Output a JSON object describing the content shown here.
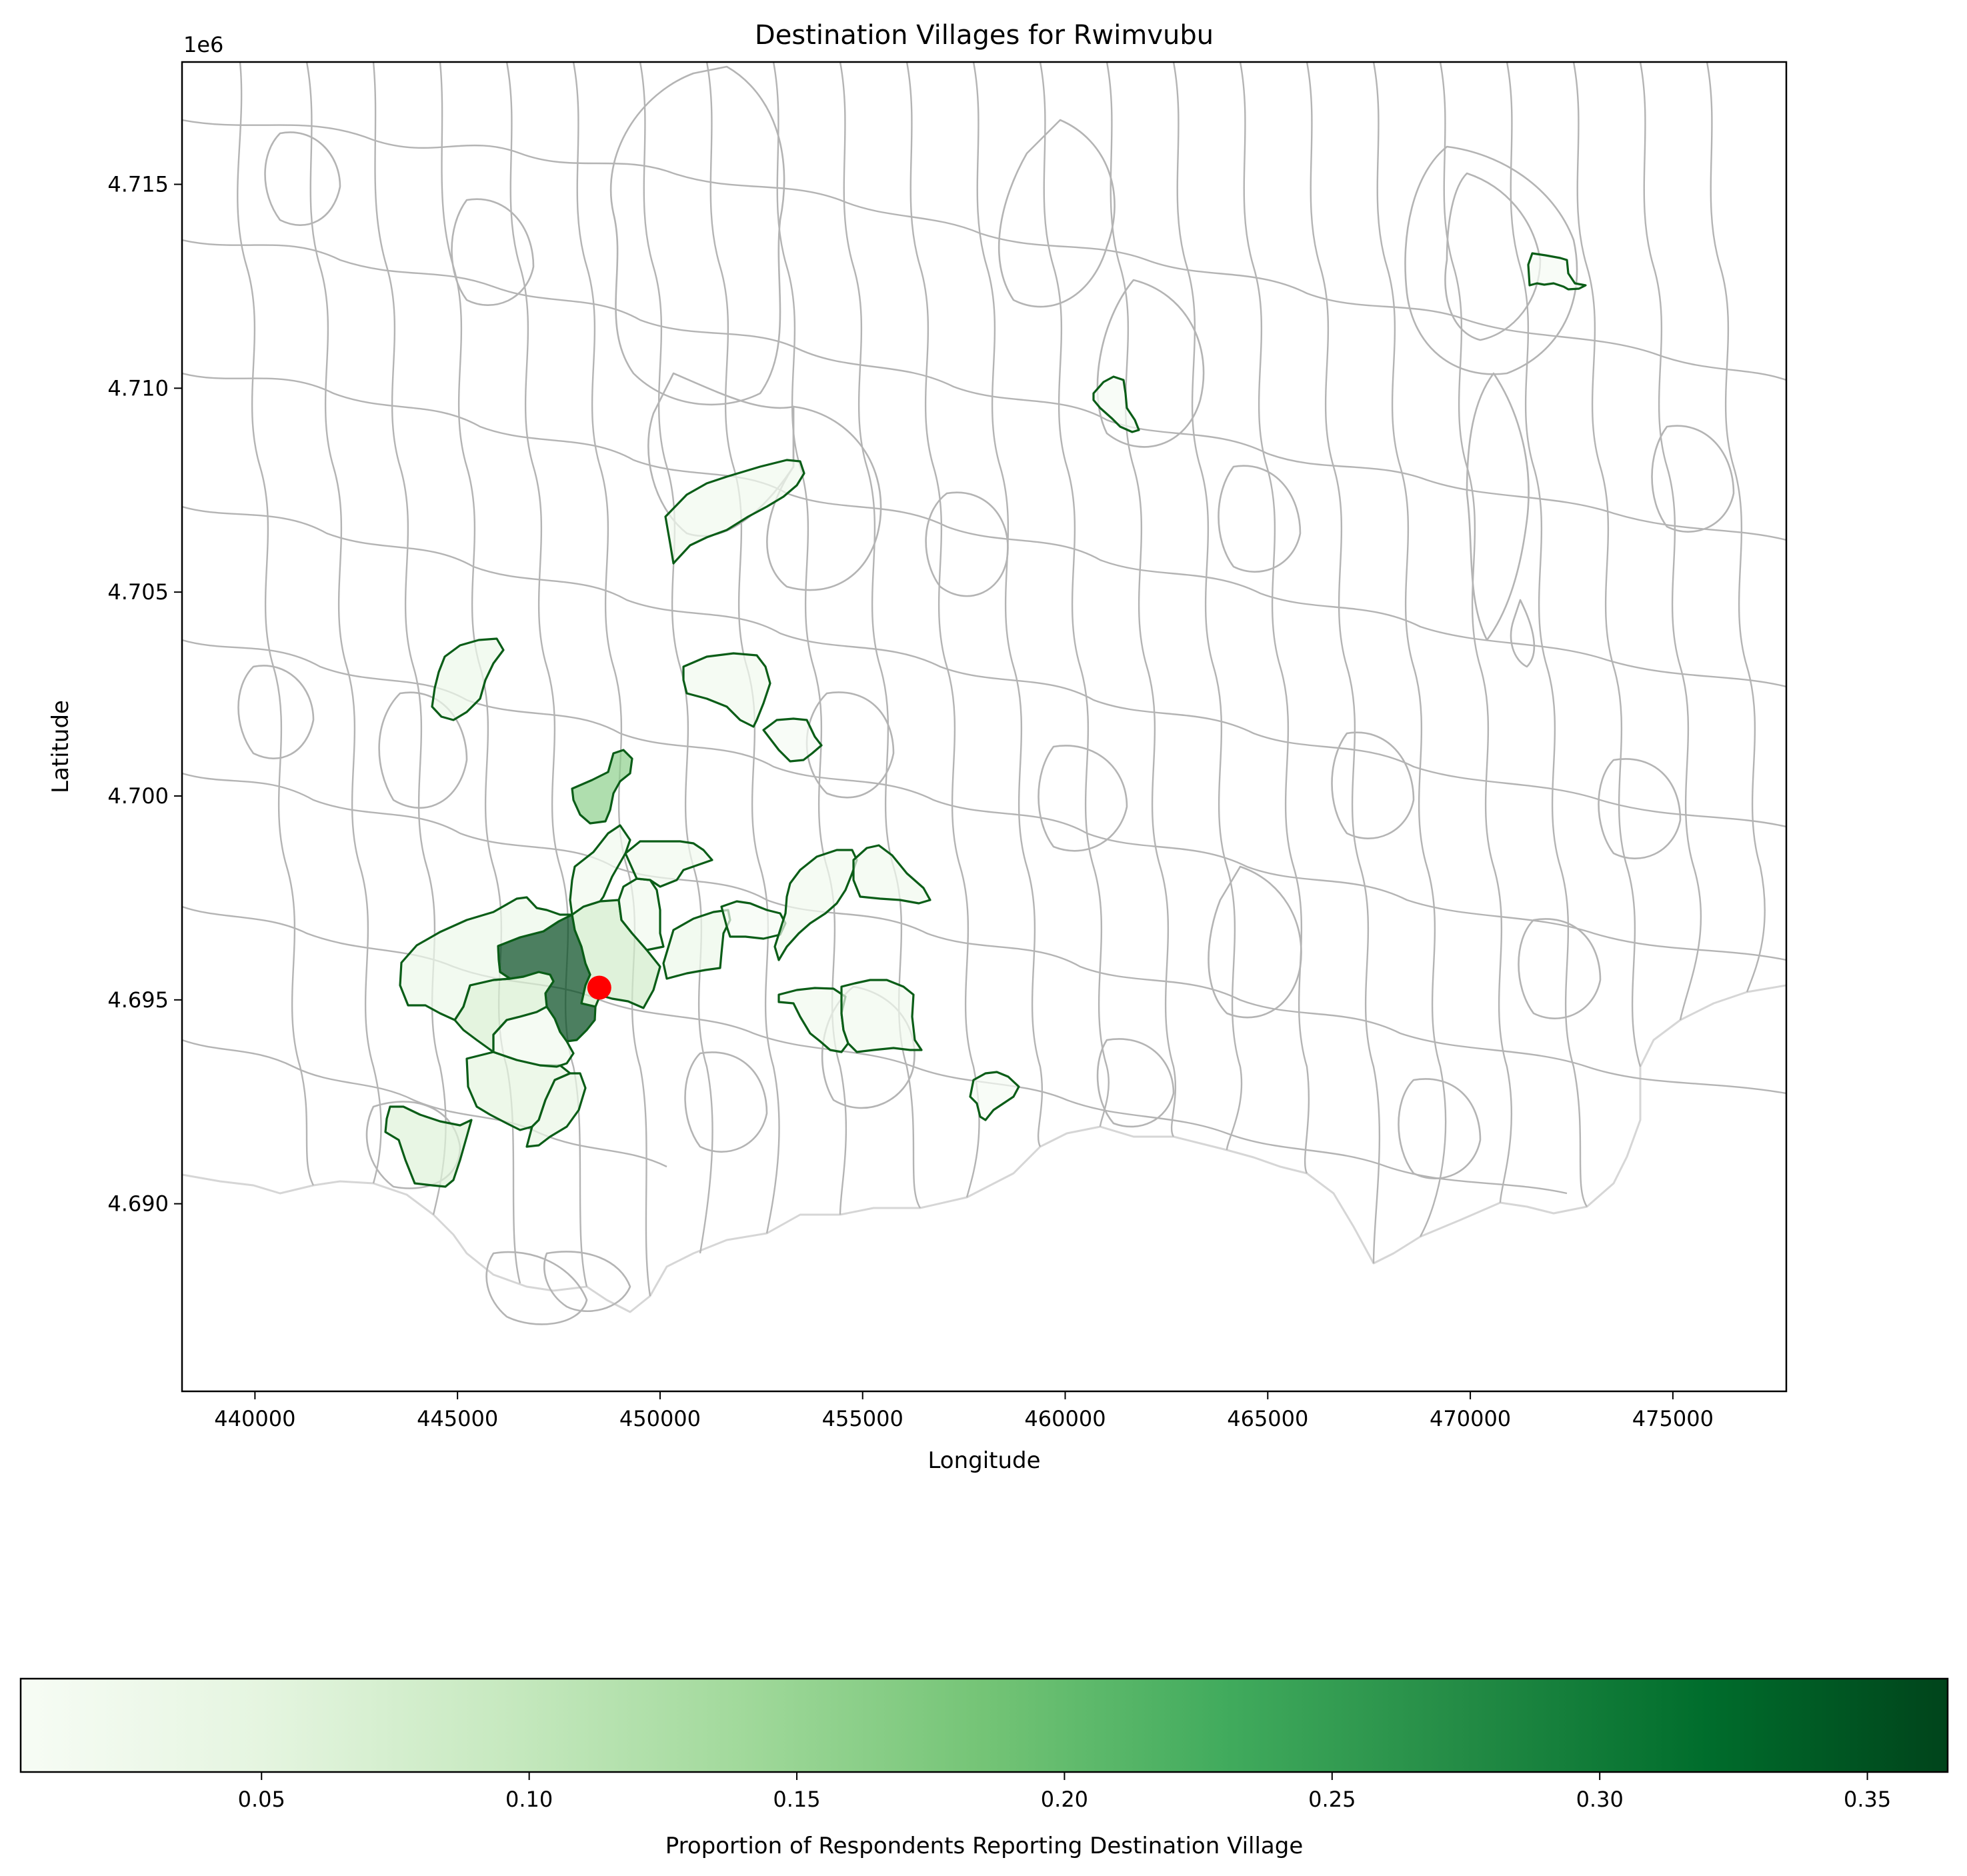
{
  "figure": {
    "title": "Destination Villages for Rwimvubu",
    "xlabel": "Longitude",
    "ylabel": "Latitude",
    "y_offset_label": "1e6"
  },
  "chart_data": {
    "type": "choropleth",
    "title": "Destination Villages for Rwimvubu",
    "xlabel": "Longitude",
    "ylabel": "Latitude",
    "xlim": [
      438200,
      477800
    ],
    "ylim": [
      4685400,
      4718000
    ],
    "y_scale_label": "1e6",
    "x_ticks": [
      440000,
      445000,
      450000,
      455000,
      460000,
      465000,
      470000,
      475000
    ],
    "x_tick_labels": [
      "440000",
      "445000",
      "450000",
      "455000",
      "460000",
      "465000",
      "470000",
      "475000"
    ],
    "y_ticks": [
      4690000,
      4695000,
      4700000,
      4705000,
      4710000,
      4715000
    ],
    "y_tick_labels": [
      "4.690",
      "4.695",
      "4.700",
      "4.705",
      "4.710",
      "4.715"
    ],
    "grid": false,
    "origin_village": {
      "x": 448500,
      "y": 4695300,
      "color": "#ff0000"
    },
    "destination_villages": [
      {
        "cx": 447200,
        "cy": 4695800,
        "value": 0.36
      },
      {
        "cx": 449300,
        "cy": 4695900,
        "value": 0.08
      },
      {
        "cx": 446200,
        "cy": 4694700,
        "value": 0.07
      },
      {
        "cx": 445500,
        "cy": 4695700,
        "value": 0.03
      },
      {
        "cx": 447600,
        "cy": 4700300,
        "value": 0.16
      },
      {
        "cx": 444200,
        "cy": 4691300,
        "value": 0.06
      },
      {
        "cx": 446300,
        "cy": 4692800,
        "value": 0.05
      },
      {
        "cx": 447400,
        "cy": 4692300,
        "value": 0.04
      },
      {
        "cx": 446900,
        "cy": 4694000,
        "value": 0.02
      },
      {
        "cx": 445300,
        "cy": 4702700,
        "value": 0.03
      },
      {
        "cx": 451800,
        "cy": 4707200,
        "value": 0.02
      },
      {
        "cx": 451800,
        "cy": 4702500,
        "value": 0.02
      },
      {
        "cx": 453400,
        "cy": 4701300,
        "value": 0.01
      },
      {
        "cx": 448400,
        "cy": 4698200,
        "value": 0.02
      },
      {
        "cx": 449900,
        "cy": 4697000,
        "value": 0.02
      },
      {
        "cx": 450800,
        "cy": 4698300,
        "value": 0.02
      },
      {
        "cx": 451300,
        "cy": 4696300,
        "value": 0.03
      },
      {
        "cx": 452200,
        "cy": 4696800,
        "value": 0.01
      },
      {
        "cx": 453900,
        "cy": 4697300,
        "value": 0.02
      },
      {
        "cx": 455600,
        "cy": 4697700,
        "value": 0.02
      },
      {
        "cx": 454000,
        "cy": 4694700,
        "value": 0.02
      },
      {
        "cx": 455600,
        "cy": 4694400,
        "value": 0.02
      },
      {
        "cx": 458300,
        "cy": 4692500,
        "value": 0.01
      },
      {
        "cx": 461200,
        "cy": 4709700,
        "value": 0.01
      },
      {
        "cx": 471900,
        "cy": 4712700,
        "value": 0.01
      }
    ]
  },
  "colorbar": {
    "label": "Proportion of Respondents Reporting Destination Village",
    "min": 0.005,
    "max": 0.365,
    "colormap": "Greens",
    "colormap_stops": [
      "#f7fcf5",
      "#e5f5e0",
      "#c7e9c0",
      "#a1d99b",
      "#74c476",
      "#41ab5d",
      "#238b45",
      "#006d2c",
      "#00441b"
    ],
    "ticks": [
      0.05,
      0.1,
      0.15,
      0.2,
      0.25,
      0.3,
      0.35
    ],
    "tick_labels": [
      "0.05",
      "0.10",
      "0.15",
      "0.20",
      "0.25",
      "0.30",
      "0.35"
    ]
  }
}
